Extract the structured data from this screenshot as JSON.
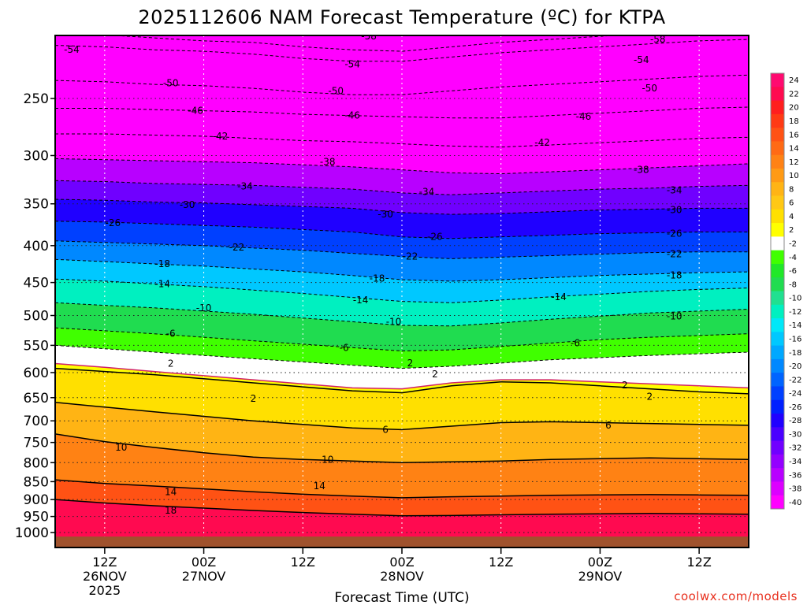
{
  "chart_data": {
    "type": "heatmap",
    "title": "2025112606 NAM Forecast Temperature (ºC) for KTPA",
    "xlabel": "Forecast Time (UTC)",
    "ylabel": "",
    "y_axis": {
      "scale": "pressure (log), inverted",
      "ticks": [
        250,
        300,
        350,
        400,
        450,
        500,
        550,
        600,
        650,
        700,
        750,
        800,
        850,
        900,
        950,
        1000
      ]
    },
    "x_axis": {
      "ticks": [
        {
          "label": "12Z",
          "sub": "26NOV",
          "sub2": "2025",
          "hour": 6
        },
        {
          "label": "00Z",
          "sub": "27NOV",
          "sub2": "",
          "hour": 18
        },
        {
          "label": "12Z",
          "sub": "",
          "sub2": "",
          "hour": 30
        },
        {
          "label": "00Z",
          "sub": "28NOV",
          "sub2": "",
          "hour": 42
        },
        {
          "label": "12Z",
          "sub": "",
          "sub2": "",
          "hour": 54
        },
        {
          "label": "00Z",
          "sub": "29NOV",
          "sub2": "",
          "hour": 66
        },
        {
          "label": "12Z",
          "sub": "",
          "sub2": "",
          "hour": 78
        }
      ],
      "range_hours": [
        0,
        84
      ]
    },
    "grid": true,
    "colorbar": {
      "placement": "right",
      "labels": [
        "24",
        "22",
        "20",
        "18",
        "16",
        "14",
        "12",
        "10",
        "8",
        "6",
        "4",
        "2",
        "-2",
        "-4",
        "-6",
        "-8",
        "-10",
        "-12",
        "-14",
        "-16",
        "-18",
        "-20",
        "-22",
        "-24",
        "-26",
        "-28",
        "-30",
        "-32",
        "-34",
        "-36",
        "-38",
        "-40"
      ],
      "colors": [
        "#ff0a70",
        "#ff0a50",
        "#ff1e1e",
        "#ff3a14",
        "#ff5214",
        "#ff6a14",
        "#ff8214",
        "#ff9a14",
        "#ffb414",
        "#ffc814",
        "#ffe000",
        "#ffff00",
        "#ffffff",
        "#40ff00",
        "#20e828",
        "#20dc50",
        "#20e090",
        "#00f0c0",
        "#00e8f8",
        "#00c8ff",
        "#00a8ff",
        "#0088ff",
        "#0064ff",
        "#0040ff",
        "#0020ff",
        "#2000ff",
        "#4a00ff",
        "#7000ff",
        "#9400ff",
        "#b800ff",
        "#dc00ff",
        "#ff00ff"
      ],
      "colors_note": "warmest at top; pink (#ff00ff) is coldest, bottom"
    },
    "isotherms": [
      {
        "value": -58,
        "p": [
          203,
          204,
          206,
          208,
          209,
          212,
          214,
          215,
          212,
          209,
          207,
          205,
          203,
          202,
          202
        ]
      },
      {
        "value": -54,
        "p": [
          211,
          212,
          214,
          215,
          217,
          220,
          222,
          222,
          219,
          216,
          214,
          212,
          210,
          208,
          207
        ]
      },
      {
        "value": -50,
        "p": [
          236,
          237,
          239,
          240,
          242,
          245,
          247,
          247,
          244,
          241,
          239,
          237,
          235,
          233,
          232
        ]
      },
      {
        "value": -46,
        "p": [
          258,
          258,
          259,
          260,
          261,
          263,
          264,
          265,
          266,
          266,
          264,
          262,
          260,
          258,
          257
        ]
      },
      {
        "value": -42,
        "p": [
          280,
          280,
          281,
          282,
          284,
          286,
          287,
          289,
          291,
          292,
          290,
          288,
          286,
          284,
          283
        ]
      },
      {
        "value": -38,
        "p": [
          303,
          304,
          305,
          306,
          307,
          309,
          311,
          314,
          317,
          318,
          316,
          314,
          312,
          310,
          308
        ]
      },
      {
        "value": -34,
        "p": [
          325,
          326,
          328,
          329,
          330,
          332,
          334,
          338,
          340,
          338,
          336,
          334,
          333,
          331,
          330
        ]
      },
      {
        "value": -30,
        "p": [
          345,
          346,
          348,
          349,
          351,
          353,
          355,
          360,
          362,
          361,
          359,
          357,
          356,
          355,
          355
        ]
      },
      {
        "value": -26,
        "p": [
          370,
          371,
          373,
          375,
          377,
          380,
          383,
          389,
          391,
          389,
          387,
          385,
          384,
          383,
          383
        ]
      },
      {
        "value": -22,
        "p": [
          394,
          396,
          398,
          400,
          403,
          406,
          410,
          414,
          417,
          415,
          413,
          411,
          409,
          408,
          408
        ]
      },
      {
        "value": -18,
        "p": [
          418,
          421,
          424,
          427,
          431,
          435,
          440,
          446,
          448,
          446,
          443,
          440,
          438,
          436,
          435
        ]
      },
      {
        "value": -14,
        "p": [
          445,
          448,
          452,
          456,
          461,
          466,
          472,
          478,
          480,
          476,
          471,
          467,
          463,
          460,
          458
        ]
      },
      {
        "value": -10,
        "p": [
          480,
          484,
          488,
          493,
          498,
          504,
          510,
          516,
          517,
          512,
          506,
          501,
          496,
          493,
          490
        ]
      },
      {
        "value": -6,
        "p": [
          520,
          525,
          530,
          536,
          542,
          548,
          554,
          560,
          558,
          552,
          546,
          540,
          536,
          533,
          530
        ]
      },
      {
        "value": -2,
        "p": [
          550,
          556,
          562,
          568,
          574,
          580,
          586,
          592,
          588,
          582,
          576,
          572,
          568,
          565,
          562
        ]
      },
      {
        "value": 2,
        "p": [
          583,
          590,
          598,
          606,
          614,
          622,
          630,
          632,
          620,
          614,
          614,
          618,
          622,
          626,
          630
        ]
      },
      {
        "value": 2,
        "p": [
          592,
          598,
          604,
          612,
          620,
          628,
          636,
          640,
          626,
          618,
          620,
          626,
          632,
          638,
          642
        ]
      },
      {
        "value": 6,
        "p": [
          660,
          670,
          680,
          690,
          700,
          708,
          716,
          720,
          712,
          704,
          702,
          704,
          706,
          708,
          710
        ]
      },
      {
        "value": 10,
        "p": [
          730,
          748,
          762,
          775,
          786,
          792,
          796,
          800,
          798,
          796,
          792,
          790,
          788,
          790,
          792
        ]
      },
      {
        "value": 14,
        "p": [
          845,
          855,
          862,
          870,
          878,
          885,
          890,
          895,
          892,
          890,
          888,
          887,
          886,
          887,
          888
        ]
      },
      {
        "value": 18,
        "p": [
          900,
          910,
          918,
          925,
          932,
          938,
          943,
          948,
          947,
          945,
          943,
          942,
          941,
          942,
          943
        ]
      }
    ],
    "contour_labels": [
      {
        "value": "-54",
        "h": 2,
        "p": 214
      },
      {
        "value": "-58",
        "h": 38,
        "p": 205
      },
      {
        "value": "-58",
        "h": 73,
        "p": 207
      },
      {
        "value": "-54",
        "h": 36,
        "p": 224
      },
      {
        "value": "-54",
        "h": 71,
        "p": 221
      },
      {
        "value": "-50",
        "h": 14,
        "p": 238
      },
      {
        "value": "-50",
        "h": 34,
        "p": 244
      },
      {
        "value": "-50",
        "h": 72,
        "p": 242
      },
      {
        "value": "-46",
        "h": 17,
        "p": 260
      },
      {
        "value": "-46",
        "h": 36,
        "p": 264
      },
      {
        "value": "-46",
        "h": 64,
        "p": 265
      },
      {
        "value": "-42",
        "h": 20,
        "p": 282
      },
      {
        "value": "-42",
        "h": 59,
        "p": 288
      },
      {
        "value": "-38",
        "h": 33,
        "p": 306
      },
      {
        "value": "-38",
        "h": 71,
        "p": 314
      },
      {
        "value": "-34",
        "h": 23,
        "p": 331
      },
      {
        "value": "-34",
        "h": 45,
        "p": 337
      },
      {
        "value": "-34",
        "h": 75,
        "p": 335
      },
      {
        "value": "-30",
        "h": 16,
        "p": 351
      },
      {
        "value": "-30",
        "h": 40,
        "p": 362
      },
      {
        "value": "-30",
        "h": 75,
        "p": 357
      },
      {
        "value": "-26",
        "h": 7,
        "p": 372
      },
      {
        "value": "-26",
        "h": 46,
        "p": 389
      },
      {
        "value": "-26",
        "h": 75,
        "p": 385
      },
      {
        "value": "-22",
        "h": 22,
        "p": 402
      },
      {
        "value": "-22",
        "h": 43,
        "p": 414
      },
      {
        "value": "-22",
        "h": 75,
        "p": 411
      },
      {
        "value": "-18",
        "h": 13,
        "p": 424
      },
      {
        "value": "-18",
        "h": 39,
        "p": 444
      },
      {
        "value": "-18",
        "h": 75,
        "p": 440
      },
      {
        "value": "-14",
        "h": 13,
        "p": 452
      },
      {
        "value": "-14",
        "h": 37,
        "p": 476
      },
      {
        "value": "-14",
        "h": 61,
        "p": 471
      },
      {
        "value": "-10",
        "h": 18,
        "p": 488
      },
      {
        "value": "-10",
        "h": 41,
        "p": 510
      },
      {
        "value": "-10",
        "h": 75,
        "p": 501
      },
      {
        "value": "-6",
        "h": 14,
        "p": 530
      },
      {
        "value": "-6",
        "h": 35,
        "p": 554
      },
      {
        "value": "-6",
        "h": 63,
        "p": 546
      },
      {
        "value": "2",
        "h": 14,
        "p": 583
      },
      {
        "value": "2",
        "h": 43,
        "p": 582
      },
      {
        "value": "2",
        "h": 46,
        "p": 603
      },
      {
        "value": "2",
        "h": 69,
        "p": 625
      },
      {
        "value": "2",
        "h": 24,
        "p": 652
      },
      {
        "value": "2",
        "h": 72,
        "p": 648
      },
      {
        "value": "6",
        "h": 40,
        "p": 720
      },
      {
        "value": "6",
        "h": 67,
        "p": 710
      },
      {
        "value": "10",
        "h": 8,
        "p": 762
      },
      {
        "value": "10",
        "h": 33,
        "p": 792
      },
      {
        "value": "14",
        "h": 14,
        "p": 878
      },
      {
        "value": "14",
        "h": 32,
        "p": 862
      },
      {
        "value": "18",
        "h": 14,
        "p": 932
      }
    ]
  },
  "watermark": "coolwx.com/models"
}
